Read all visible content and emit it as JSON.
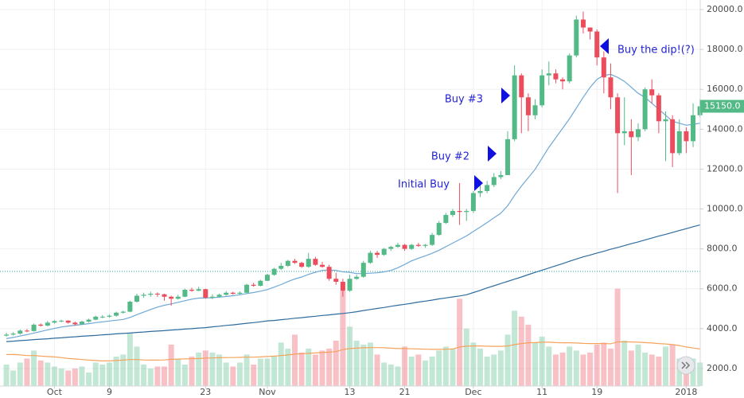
{
  "chart_data": {
    "type": "candlestick",
    "up_color": "#53b987",
    "down_color": "#eb4d5c",
    "grid": true,
    "ylim": [
      1120,
      20480
    ],
    "yticks": [
      {
        "value": 2000,
        "label": "2000.0"
      },
      {
        "value": 4000,
        "label": "4000.0"
      },
      {
        "value": 6000,
        "label": "6000.0"
      },
      {
        "value": 8000,
        "label": "8000.0"
      },
      {
        "value": 10000,
        "label": "10000.0"
      },
      {
        "value": 12000,
        "label": "12000.0"
      },
      {
        "value": 14000,
        "label": "14000.0"
      },
      {
        "value": 16000,
        "label": "16000.0"
      },
      {
        "value": 18000,
        "label": "18000.0"
      },
      {
        "value": 20000,
        "label": "20000.0"
      }
    ],
    "xlim": [
      -0.93,
      101.04
    ],
    "xticks": [
      {
        "value": 7,
        "label": "Oct"
      },
      {
        "value": 15,
        "label": "9"
      },
      {
        "value": 29,
        "label": "23"
      },
      {
        "value": 38,
        "label": "Nov"
      },
      {
        "value": 50,
        "label": "13"
      },
      {
        "value": 58,
        "label": "21"
      },
      {
        "value": 68,
        "label": "Dec"
      },
      {
        "value": 78,
        "label": "11"
      },
      {
        "value": 86,
        "label": "19"
      },
      {
        "value": 99,
        "label": "2018"
      }
    ],
    "candles": [
      [
        3650,
        3800,
        3600,
        3700
      ],
      [
        3700,
        3820,
        3650,
        3750
      ],
      [
        3750,
        3950,
        3700,
        3900
      ],
      [
        3900,
        3980,
        3820,
        3880
      ],
      [
        3880,
        4250,
        3850,
        4200
      ],
      [
        4200,
        4260,
        4100,
        4150
      ],
      [
        4150,
        4380,
        4120,
        4300
      ],
      [
        4300,
        4420,
        4250,
        4380
      ],
      [
        4380,
        4450,
        4320,
        4400
      ],
      [
        4400,
        4420,
        4250,
        4300
      ],
      [
        4300,
        4350,
        4150,
        4220
      ],
      [
        4220,
        4400,
        4200,
        4350
      ],
      [
        4350,
        4500,
        4300,
        4450
      ],
      [
        4450,
        4650,
        4420,
        4600
      ],
      [
        4600,
        4680,
        4520,
        4600
      ],
      [
        4600,
        4700,
        4550,
        4650
      ],
      [
        4650,
        4850,
        4600,
        4800
      ],
      [
        4800,
        4900,
        4750,
        4850
      ],
      [
        4850,
        5400,
        4820,
        5350
      ],
      [
        5350,
        5750,
        5300,
        5650
      ],
      [
        5650,
        5800,
        5550,
        5700
      ],
      [
        5700,
        5850,
        5600,
        5750
      ],
      [
        5750,
        5820,
        5600,
        5720
      ],
      [
        5720,
        5750,
        5400,
        5600
      ],
      [
        5600,
        5650,
        5150,
        5500
      ],
      [
        5500,
        5700,
        5450,
        5600
      ],
      [
        5600,
        6000,
        5580,
        5950
      ],
      [
        5950,
        6050,
        5850,
        5900
      ],
      [
        5900,
        6100,
        5880,
        5980
      ],
      [
        5980,
        6000,
        5500,
        5550
      ],
      [
        5550,
        5720,
        5480,
        5600
      ],
      [
        5600,
        5750,
        5560,
        5700
      ],
      [
        5700,
        5880,
        5650,
        5800
      ],
      [
        5800,
        5850,
        5700,
        5750
      ],
      [
        5750,
        5870,
        5720,
        5800
      ],
      [
        5800,
        6250,
        5780,
        6200
      ],
      [
        6200,
        6300,
        6100,
        6150
      ],
      [
        6150,
        6450,
        6120,
        6400
      ],
      [
        6400,
        6750,
        6380,
        6700
      ],
      [
        6700,
        7050,
        6650,
        7000
      ],
      [
        7000,
        7300,
        6950,
        7150
      ],
      [
        7150,
        7450,
        7100,
        7400
      ],
      [
        7400,
        7500,
        7250,
        7300
      ],
      [
        7300,
        7350,
        7050,
        7100
      ],
      [
        7100,
        7800,
        7050,
        7500
      ],
      [
        7500,
        7600,
        7150,
        7200
      ],
      [
        7200,
        7350,
        7050,
        7100
      ],
      [
        7100,
        7200,
        6400,
        6500
      ],
      [
        6500,
        6800,
        6200,
        6350
      ],
      [
        6350,
        6500,
        5600,
        5900
      ],
      [
        5900,
        6700,
        5850,
        6500
      ],
      [
        6500,
        6700,
        6450,
        6600
      ],
      [
        6600,
        7400,
        6550,
        7300
      ],
      [
        7300,
        7900,
        7250,
        7800
      ],
      [
        7800,
        7900,
        7550,
        7700
      ],
      [
        7700,
        8050,
        7650,
        8000
      ],
      [
        8000,
        8150,
        7900,
        8100
      ],
      [
        8100,
        8300,
        8050,
        8200
      ],
      [
        8200,
        8250,
        7900,
        8000
      ],
      [
        8000,
        8250,
        7950,
        8200
      ],
      [
        8200,
        8300,
        8100,
        8150
      ],
      [
        8150,
        8250,
        8050,
        8200
      ],
      [
        8200,
        8800,
        8150,
        8700
      ],
      [
        8700,
        9400,
        8650,
        9300
      ],
      [
        9300,
        9800,
        9250,
        9700
      ],
      [
        9700,
        10000,
        9600,
        9900
      ],
      [
        9900,
        11300,
        9200,
        9850
      ],
      [
        9850,
        10000,
        9400,
        9900
      ],
      [
        9900,
        10900,
        9800,
        10800
      ],
      [
        10800,
        11200,
        10600,
        10900
      ],
      [
        10900,
        11400,
        10800,
        11200
      ],
      [
        11200,
        11800,
        11100,
        11600
      ],
      [
        11600,
        11900,
        11500,
        11700
      ],
      [
        11700,
        13900,
        11700,
        13500
      ],
      [
        13500,
        17200,
        13400,
        16700
      ],
      [
        16700,
        16800,
        13800,
        15600
      ],
      [
        15600,
        15800,
        13900,
        14700
      ],
      [
        14700,
        15500,
        14500,
        15200
      ],
      [
        15200,
        17000,
        15100,
        16700
      ],
      [
        16700,
        17400,
        16200,
        16800
      ],
      [
        16800,
        17000,
        16300,
        16500
      ],
      [
        16500,
        16600,
        16000,
        16400
      ],
      [
        16400,
        17800,
        16300,
        17700
      ],
      [
        17700,
        19700,
        17600,
        19500
      ],
      [
        19500,
        19900,
        18800,
        19100
      ],
      [
        19100,
        19100,
        18500,
        18900
      ],
      [
        18900,
        19000,
        17200,
        17600
      ],
      [
        17600,
        17900,
        15800,
        16600
      ],
      [
        16600,
        17300,
        15000,
        15600
      ],
      [
        15600,
        15800,
        10800,
        13800
      ],
      [
        13800,
        15600,
        13200,
        13900
      ],
      [
        13900,
        14500,
        11700,
        13600
      ],
      [
        13600,
        14300,
        13400,
        14000
      ],
      [
        14000,
        16100,
        13900,
        16000
      ],
      [
        16000,
        16500,
        15300,
        15700
      ],
      [
        15700,
        15800,
        13800,
        14400
      ],
      [
        14400,
        14900,
        12400,
        14500
      ],
      [
        14500,
        14700,
        12100,
        12800
      ],
      [
        12800,
        14500,
        12700,
        13900
      ],
      [
        13900,
        14100,
        12800,
        13400
      ],
      [
        13400,
        15300,
        13100,
        14700
      ],
      [
        14700,
        15500,
        14600,
        15150
      ]
    ],
    "volume": [
      2200,
      1900,
      2300,
      2500,
      2900,
      2400,
      2300,
      2100,
      2000,
      1900,
      2000,
      2100,
      1800,
      2300,
      2200,
      2300,
      2600,
      2700,
      3800,
      3100,
      2200,
      2000,
      2100,
      2100,
      3200,
      2500,
      2200,
      2600,
      2800,
      2900,
      2800,
      2700,
      2300,
      2100,
      2300,
      2700,
      2200,
      2500,
      2500,
      2600,
      3300,
      3000,
      3700,
      2800,
      3000,
      2700,
      2900,
      3000,
      3400,
      5900,
      4100,
      3400,
      3200,
      3300,
      2700,
      2300,
      2200,
      2100,
      3100,
      2600,
      2700,
      2400,
      2600,
      2900,
      3100,
      3000,
      5500,
      4000,
      3300,
      3000,
      2600,
      2700,
      2900,
      3700,
      4900,
      4600,
      4200,
      3300,
      3600,
      3100,
      2700,
      2800,
      3100,
      2900,
      2700,
      2800,
      3200,
      3300,
      3000,
      6000,
      3400,
      2900,
      3200,
      2800,
      2700,
      2600,
      3100,
      3200,
      2500,
      2200,
      2500,
      2300
    ],
    "series": [
      {
        "color": "#6fa8d6",
        "values": [
          3500,
          3560,
          3630,
          3700,
          3780,
          3860,
          3940,
          4010,
          4080,
          4130,
          4170,
          4210,
          4250,
          4300,
          4340,
          4380,
          4420,
          4460,
          4560,
          4700,
          4830,
          4960,
          5080,
          5170,
          5240,
          5320,
          5400,
          5480,
          5530,
          5540,
          5550,
          5580,
          5610,
          5650,
          5700,
          5760,
          5810,
          5880,
          5960,
          6080,
          6210,
          6360,
          6490,
          6590,
          6720,
          6830,
          6920,
          6940,
          6920,
          6850,
          6820,
          6760,
          6760,
          6780,
          6800,
          6850,
          6920,
          7050,
          7220,
          7400,
          7530,
          7650,
          7780,
          7930,
          8110,
          8290,
          8470,
          8650,
          8870,
          9090,
          9320,
          9560,
          9790,
          10160,
          10680,
          11150,
          11570,
          11990,
          12550,
          13090,
          13570,
          14050,
          14530,
          15060,
          15600,
          16100,
          16500,
          16700,
          16750,
          16600,
          16400,
          16100,
          15800,
          15600,
          15300,
          15000,
          14700,
          14400,
          14300,
          14200,
          14250,
          14300
        ]
      },
      {
        "color": "#2f6c9e",
        "values": [
          3350,
          3370,
          3400,
          3420,
          3450,
          3470,
          3490,
          3520,
          3540,
          3570,
          3590,
          3620,
          3640,
          3660,
          3690,
          3710,
          3740,
          3760,
          3780,
          3810,
          3830,
          3860,
          3880,
          3900,
          3930,
          3950,
          3980,
          4000,
          4030,
          4050,
          4090,
          4120,
          4160,
          4190,
          4230,
          4270,
          4300,
          4340,
          4390,
          4410,
          4450,
          4480,
          4520,
          4550,
          4590,
          4620,
          4660,
          4690,
          4730,
          4760,
          4800,
          4850,
          4910,
          4960,
          5010,
          5060,
          5120,
          5170,
          5220,
          5270,
          5330,
          5380,
          5430,
          5490,
          5540,
          5590,
          5640,
          5700,
          5810,
          5920,
          6040,
          6150,
          6260,
          6370,
          6480,
          6590,
          6710,
          6820,
          6930,
          7040,
          7150,
          7260,
          7380,
          7490,
          7600,
          7690,
          7790,
          7880,
          7980,
          8070,
          8160,
          8260,
          8350,
          8450,
          8540,
          8640,
          8730,
          8820,
          8920,
          9010,
          9110,
          9200
        ]
      },
      {
        "color": "#f5a35c",
        "values": [
          2700,
          2700,
          2680,
          2650,
          2650,
          2620,
          2600,
          2580,
          2550,
          2500,
          2480,
          2450,
          2420,
          2400,
          2380,
          2380,
          2400,
          2420,
          2450,
          2450,
          2430,
          2420,
          2420,
          2430,
          2460,
          2470,
          2480,
          2490,
          2500,
          2520,
          2530,
          2540,
          2550,
          2550,
          2560,
          2570,
          2570,
          2580,
          2600,
          2620,
          2650,
          2680,
          2720,
          2740,
          2760,
          2780,
          2800,
          2820,
          2850,
          2950,
          3000,
          3020,
          3040,
          3050,
          3050,
          3040,
          3020,
          3000,
          3000,
          2990,
          2980,
          2970,
          2960,
          2960,
          2970,
          2980,
          3080,
          3120,
          3130,
          3130,
          3120,
          3110,
          3110,
          3130,
          3200,
          3250,
          3290,
          3300,
          3320,
          3320,
          3300,
          3290,
          3290,
          3280,
          3260,
          3250,
          3250,
          3250,
          3240,
          3330,
          3340,
          3330,
          3320,
          3300,
          3280,
          3250,
          3230,
          3200,
          3150,
          3080,
          3030,
          2980
        ]
      }
    ],
    "reference_line": {
      "value": 6870,
      "color": "#26a69a"
    },
    "last_price": {
      "value": 15150,
      "label": "15150.0"
    },
    "annotations": [
      "Initial Buy",
      "Buy #2",
      "Buy #3",
      "Buy the dip!(?)"
    ],
    "annotation_color": "#2323d8"
  }
}
